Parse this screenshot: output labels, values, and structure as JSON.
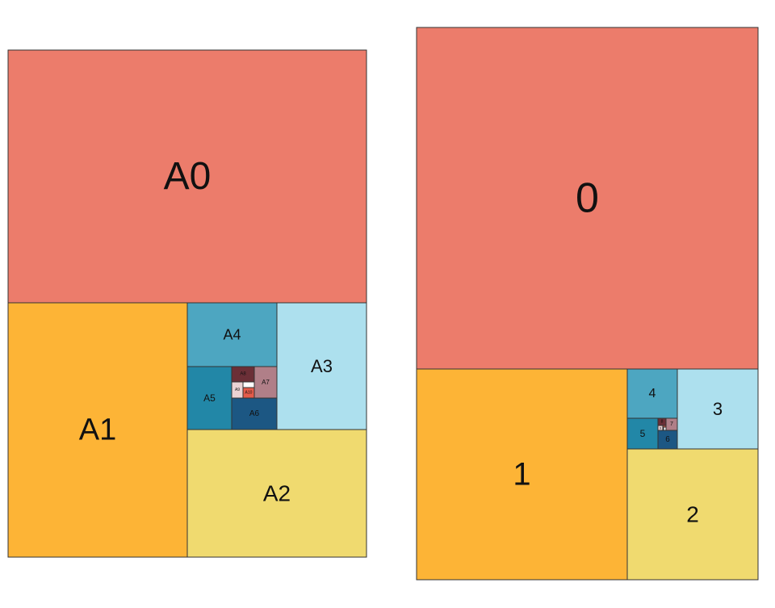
{
  "colors": {
    "0": "#ec7c6b",
    "1": "#fdb436",
    "2": "#f0da6f",
    "3": "#ade0ee",
    "4": "#4da6c1",
    "5": "#2287a7",
    "6": "#1c5783",
    "7": "#b07f88",
    "8": "#6b2f37",
    "9": "#ebd2d3",
    "10": "#e45b4a",
    "11": "#ffffff"
  },
  "left_panel": {
    "labels": [
      "A0",
      "A1",
      "A2",
      "A3",
      "A4",
      "A5",
      "A6",
      "A7",
      "A8",
      "A9",
      "A10"
    ]
  },
  "right_panel": {
    "labels": [
      "0",
      "1",
      "2",
      "3",
      "4",
      "5",
      "6",
      "7",
      "8",
      "9",
      "10"
    ]
  }
}
